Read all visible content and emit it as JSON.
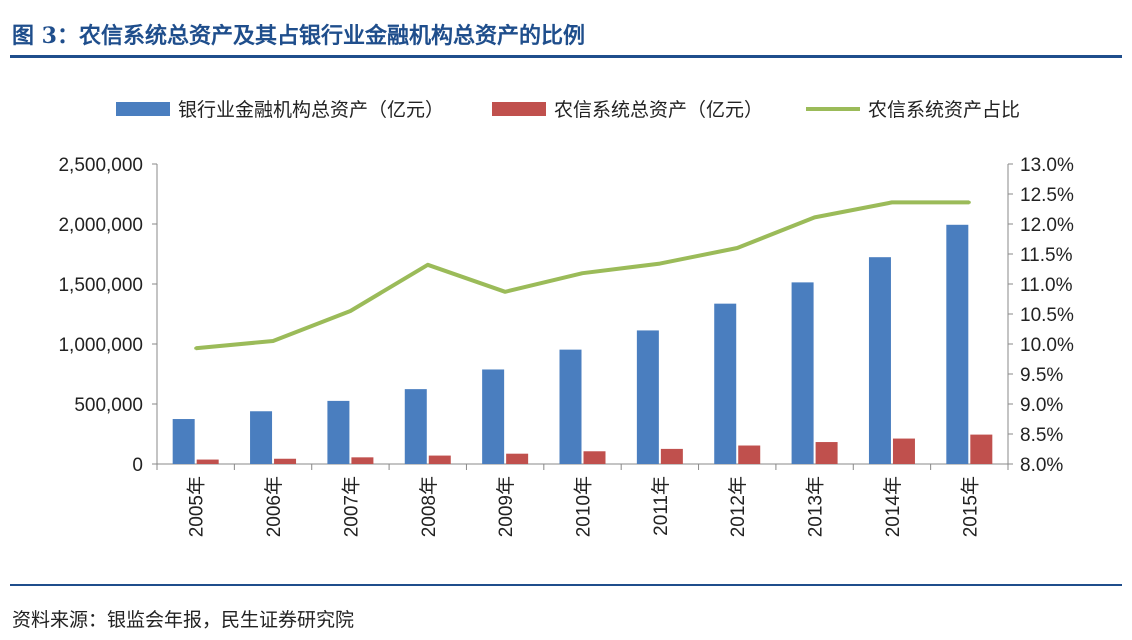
{
  "page": {
    "title": "图 3：农信系统总资产及其占银行业金融机构总资产的比例",
    "source": "资料来源：银监会年报，民生证券研究院"
  },
  "colors": {
    "bank_bar": "#4a7ebf",
    "rural_bar": "#c0504d",
    "ratio_line": "#9bbb59",
    "accent": "#1f4e8c"
  },
  "chart_data": {
    "type": "bar",
    "title": "",
    "categories": [
      "2005年",
      "2006年",
      "2007年",
      "2008年",
      "2009年",
      "2010年",
      "2011年",
      "2012年",
      "2013年",
      "2014年",
      "2015年"
    ],
    "series": [
      {
        "name": "银行业金融机构总资产（亿元）",
        "type": "bar",
        "axis": "left",
        "values": [
          374697,
          439500,
          525983,
          623876,
          787691,
          953053,
          1113100,
          1336200,
          1513500,
          1723400,
          1993454
        ]
      },
      {
        "name": "农信系统总资产（亿元）",
        "type": "bar",
        "axis": "right_none",
        "values": [
          37000,
          43800,
          55500,
          70200,
          85900,
          106000,
          125900,
          154000,
          182900,
          212000,
          245000
        ]
      },
      {
        "name": "农信系统资产占比",
        "type": "line",
        "axis": "right",
        "values": [
          9.93,
          10.05,
          10.55,
          11.32,
          10.87,
          11.18,
          11.34,
          11.6,
          12.11,
          12.36,
          12.36
        ]
      }
    ],
    "left_axis": {
      "ylim": [
        0,
        2500000
      ],
      "ticks": [
        0,
        500000,
        1000000,
        1500000,
        2000000,
        2500000
      ],
      "tick_labels": [
        "0",
        "500,000",
        "1,000,000",
        "1,500,000",
        "2,000,000",
        "2,500,000"
      ]
    },
    "right_axis": {
      "ylim": [
        8.0,
        13.0
      ],
      "ticks": [
        8.0,
        8.5,
        9.0,
        9.5,
        10.0,
        10.5,
        11.0,
        11.5,
        12.0,
        12.5,
        13.0
      ],
      "tick_labels": [
        "8.0%",
        "8.5%",
        "9.0%",
        "9.5%",
        "10.0%",
        "10.5%",
        "11.0%",
        "11.5%",
        "12.0%",
        "12.5%",
        "13.0%"
      ]
    },
    "legend": {
      "placement": "top",
      "entries": [
        "银行业金融机构总资产（亿元）",
        "农信系统总资产（亿元）",
        "农信系统资产占比"
      ]
    },
    "grid": false
  }
}
